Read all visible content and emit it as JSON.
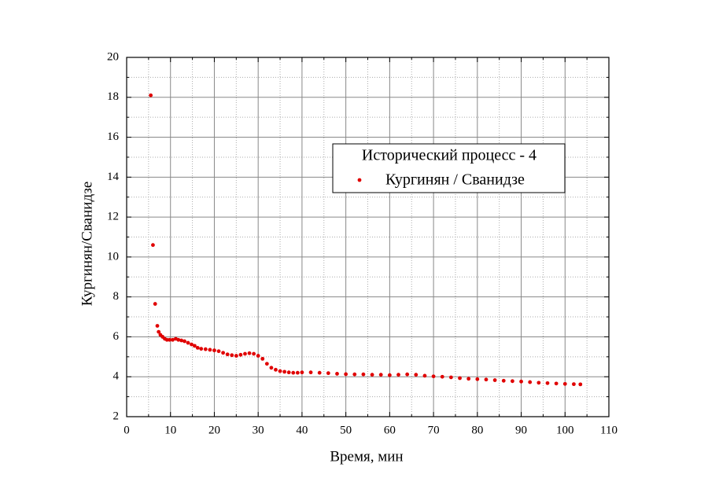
{
  "chart_data": {
    "type": "scatter",
    "xlabel": "Время, мин",
    "ylabel": "Кургинян/Сванидзе",
    "legend_title": "Исторический процесс - 4",
    "legend": "upper right",
    "xlim": [
      0,
      110
    ],
    "ylim": [
      2,
      20
    ],
    "xticks": [
      0,
      10,
      20,
      30,
      40,
      50,
      60,
      70,
      80,
      90,
      100,
      110
    ],
    "yticks": [
      2,
      4,
      6,
      8,
      10,
      12,
      14,
      16,
      18,
      20
    ],
    "minor_xticks": [
      5,
      15,
      25,
      35,
      45,
      55,
      65,
      75,
      85,
      95,
      105
    ],
    "minor_yticks": [
      3,
      5,
      7,
      9,
      11,
      13,
      15,
      17,
      19
    ],
    "grid": true,
    "series": [
      {
        "name": "Кургинян / Сванидзе",
        "color": "#e00000",
        "x": [
          5.5,
          6.0,
          6.5,
          7.0,
          7.3,
          7.7,
          8.2,
          8.7,
          9.2,
          9.8,
          10.5,
          11.2,
          11.8,
          12.5,
          13.2,
          14,
          14.8,
          15.5,
          16.2,
          17,
          18,
          19,
          20,
          21,
          22,
          23,
          24,
          25,
          26,
          27,
          28,
          29,
          30,
          31,
          32,
          33,
          34,
          35,
          36,
          37,
          38,
          39,
          40,
          42,
          44,
          46,
          48,
          50,
          52,
          54,
          56,
          58,
          60,
          62,
          64,
          66,
          68,
          70,
          72,
          74,
          76,
          78,
          80,
          82,
          84,
          86,
          88,
          90,
          92,
          94,
          96,
          98,
          100,
          102,
          103.5
        ],
        "values": [
          18.1,
          10.6,
          7.65,
          6.55,
          6.25,
          6.1,
          6.0,
          5.9,
          5.85,
          5.85,
          5.85,
          5.9,
          5.85,
          5.82,
          5.78,
          5.7,
          5.62,
          5.55,
          5.45,
          5.4,
          5.38,
          5.35,
          5.32,
          5.28,
          5.2,
          5.12,
          5.08,
          5.05,
          5.1,
          5.15,
          5.18,
          5.15,
          5.05,
          4.9,
          4.65,
          4.45,
          4.35,
          4.28,
          4.25,
          4.22,
          4.2,
          4.2,
          4.22,
          4.22,
          4.2,
          4.18,
          4.15,
          4.13,
          4.12,
          4.12,
          4.1,
          4.1,
          4.08,
          4.1,
          4.12,
          4.1,
          4.05,
          4.02,
          4.0,
          3.97,
          3.93,
          3.9,
          3.88,
          3.86,
          3.83,
          3.8,
          3.78,
          3.76,
          3.73,
          3.7,
          3.68,
          3.66,
          3.64,
          3.63,
          3.62
        ]
      }
    ]
  }
}
